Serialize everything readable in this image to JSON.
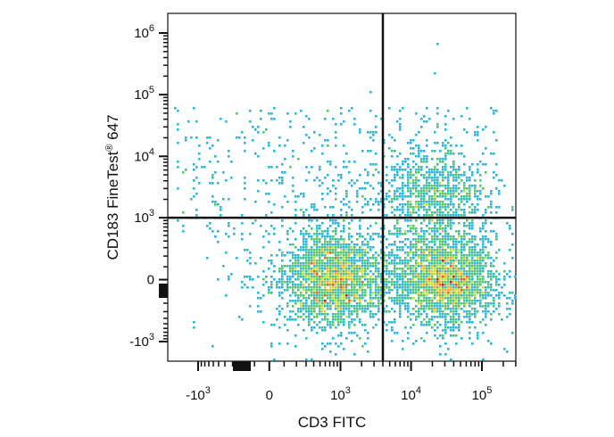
{
  "chart_data": {
    "type": "scatter",
    "plot_style": "flow cytometry density dot plot with quadrant gates",
    "xlabel": "CD3 FITC",
    "ylabel": {
      "main": "CD183 FineTest",
      "sup": "®",
      "suffix": " 647"
    },
    "x_scale": "biexponential",
    "y_scale": "biexponential",
    "x_ticks": [
      {
        "base": "-10",
        "exp": "3",
        "value": -1000
      },
      {
        "base": "0",
        "exp": "",
        "value": 0
      },
      {
        "base": "10",
        "exp": "3",
        "value": 1000
      },
      {
        "base": "10",
        "exp": "4",
        "value": 10000
      },
      {
        "base": "10",
        "exp": "5",
        "value": 100000
      }
    ],
    "y_ticks": [
      {
        "base": "10",
        "exp": "6",
        "value": 1000000
      },
      {
        "base": "10",
        "exp": "5",
        "value": 100000
      },
      {
        "base": "10",
        "exp": "4",
        "value": 10000
      },
      {
        "base": "10",
        "exp": "3",
        "value": 1000
      },
      {
        "base": "0",
        "exp": "",
        "value": 0
      },
      {
        "base": "-10",
        "exp": "3",
        "value": -1000
      }
    ],
    "quadrant_gates": {
      "x": 4000,
      "y": 1000
    },
    "populations": [
      {
        "center_x": 800,
        "center_y": 0,
        "density": "high"
      },
      {
        "center_x": 30000,
        "center_y": 0,
        "density": "high"
      },
      {
        "center_x": 20000,
        "center_y": 2000,
        "density": "medium"
      }
    ],
    "density_colors": [
      "#2b3a9e",
      "#3f7fd6",
      "#2fb5d8",
      "#57c46e",
      "#c6df3a",
      "#f3b12b",
      "#ea5a1c",
      "#d2111a"
    ],
    "gate_color": "#111111"
  }
}
